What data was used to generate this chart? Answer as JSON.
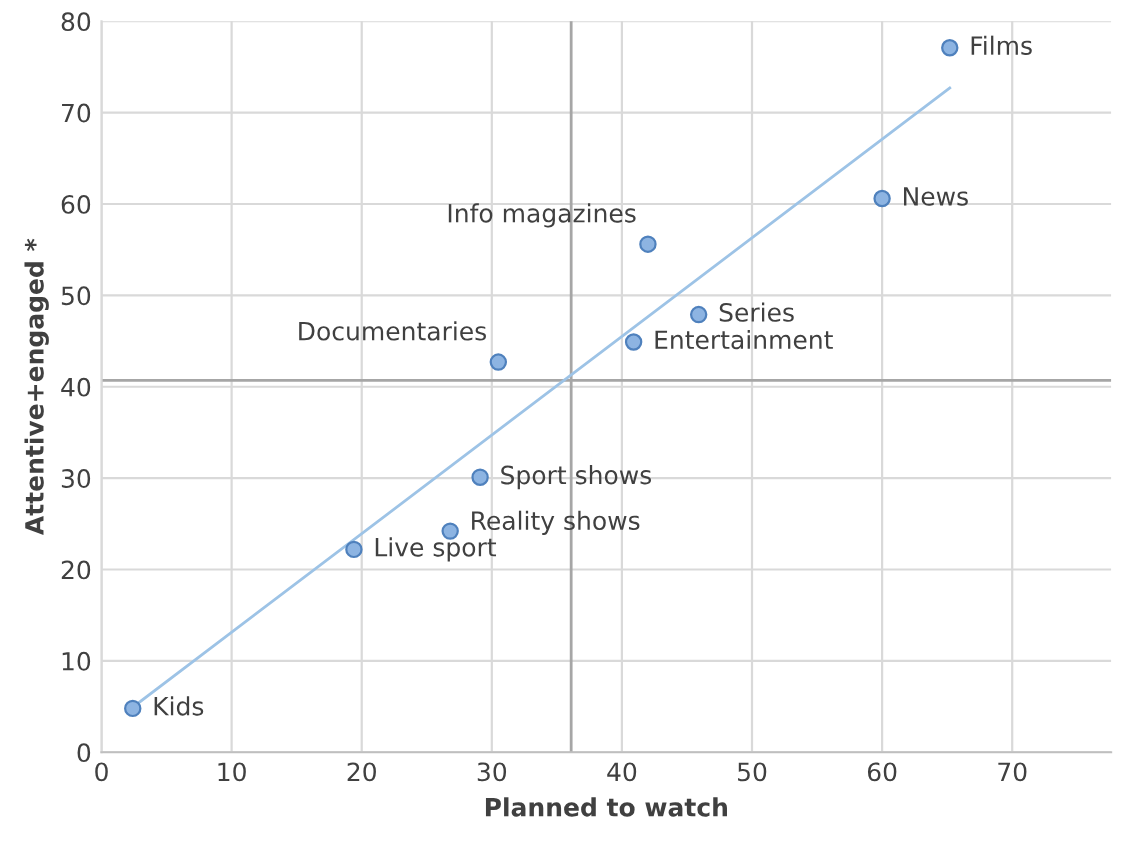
{
  "chart_data": {
    "type": "scatter",
    "xlabel": "Planned to watch",
    "ylabel": "Attentive+engaged *",
    "series": [
      {
        "color": "#8db4e2",
        "x": [
          2.4,
          19.4,
          26.8,
          29.1,
          30.5,
          40.9,
          45.9,
          42.0,
          60.0,
          65.2
        ],
        "values": [
          4.8,
          22.2,
          24.2,
          30.1,
          42.7,
          44.9,
          47.9,
          55.6,
          60.6,
          77.1
        ]
      },
      {
        "type": "line",
        "color": "#9dc3e6",
        "x": [
          2.1,
          65.2
        ],
        "values": [
          4.6,
          72.7
        ],
        "marker": "none"
      }
    ],
    "annotations": [
      {
        "text": "Kids",
        "x": 2.4,
        "y": 4.8
      },
      {
        "text": "Live sport",
        "x": 19.4,
        "y": 22.2
      },
      {
        "text": "Reality shows",
        "x": 26.8,
        "y": 24.2
      },
      {
        "text": "Sport shows",
        "x": 29.1,
        "y": 30.1
      },
      {
        "text": "Documentaries",
        "x": 30.5,
        "y": 42.7
      },
      {
        "text": "Entertainment",
        "x": 40.9,
        "y": 44.9
      },
      {
        "text": "Series",
        "x": 45.9,
        "y": 47.9
      },
      {
        "text": "Info magazines",
        "x": 42.0,
        "y": 55.6
      },
      {
        "text": "News",
        "x": 60.0,
        "y": 60.6
      },
      {
        "text": "Films",
        "x": 65.2,
        "y": 77.1
      }
    ],
    "ref_lines": [
      {
        "axis": "x",
        "value": 36.1,
        "color": "#a6a6a6"
      },
      {
        "axis": "y",
        "value": 40.7,
        "color": "#a6a6a6"
      }
    ],
    "xlim": [
      0,
      77.6
    ],
    "ylim": [
      0,
      80
    ],
    "xticks": [
      0,
      10,
      20,
      30,
      40,
      50,
      60,
      70
    ],
    "yticks": [
      0,
      10,
      20,
      30,
      40,
      50,
      60,
      70,
      80
    ],
    "grid": true,
    "marker": "circle"
  }
}
